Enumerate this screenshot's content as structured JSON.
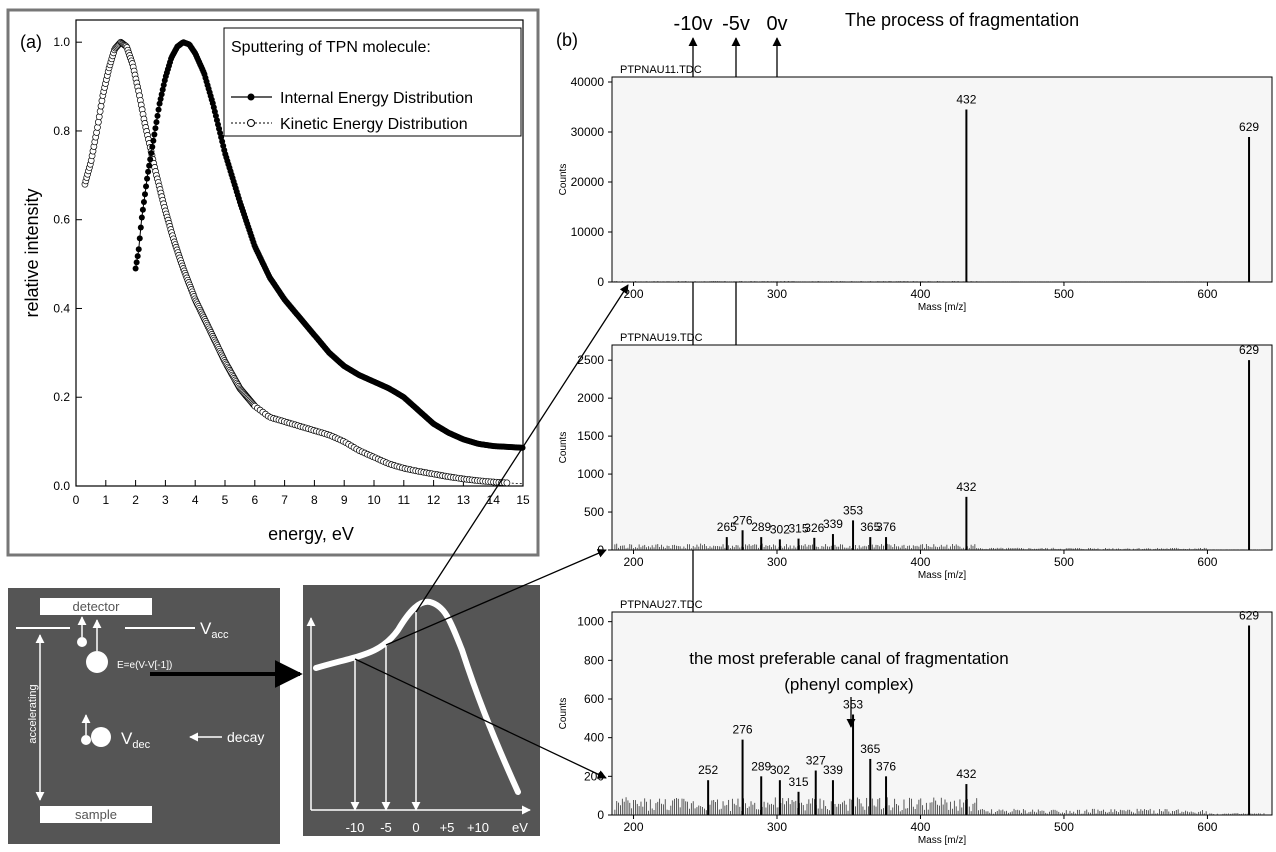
{
  "chart_data": [
    {
      "type": "line",
      "panel_label": "(a)",
      "title": "Sputtering of TPN molecule:",
      "xlabel": "energy, eV",
      "ylabel": "relative intensity",
      "xlim": [
        0,
        15
      ],
      "ylim": [
        0,
        1.05
      ],
      "xticks": [
        "0",
        "1",
        "2",
        "3",
        "4",
        "5",
        "6",
        "7",
        "8",
        "9",
        "10",
        "11",
        "12",
        "13",
        "14",
        "15"
      ],
      "yticks": [
        "0.0",
        "0.2",
        "0.4",
        "0.6",
        "0.8",
        "1.0"
      ],
      "legend_position": "top-right",
      "series": [
        {
          "name": "Internal Energy Distribution",
          "x": [
            2.0,
            2.1,
            2.2,
            2.4,
            2.6,
            2.8,
            3.0,
            3.2,
            3.4,
            3.6,
            3.8,
            4.0,
            4.3,
            4.6,
            5.0,
            5.5,
            6.0,
            6.5,
            7.0,
            7.5,
            8.0,
            8.5,
            9.0,
            9.5,
            10.0,
            10.5,
            11.0,
            11.5,
            12.0,
            12.5,
            13.0,
            13.5,
            14.0,
            14.5,
            15.0
          ],
          "y": [
            0.49,
            0.53,
            0.6,
            0.7,
            0.78,
            0.86,
            0.92,
            0.965,
            0.99,
            1.0,
            0.995,
            0.975,
            0.93,
            0.86,
            0.75,
            0.64,
            0.54,
            0.47,
            0.42,
            0.38,
            0.34,
            0.3,
            0.27,
            0.25,
            0.235,
            0.22,
            0.2,
            0.17,
            0.14,
            0.12,
            0.105,
            0.095,
            0.09,
            0.088,
            0.086
          ]
        },
        {
          "name": "Kinetic Energy Distribution",
          "x": [
            0.3,
            0.5,
            0.7,
            0.9,
            1.1,
            1.3,
            1.5,
            1.7,
            1.9,
            2.1,
            2.3,
            2.5,
            2.7,
            3.0,
            3.3,
            3.6,
            4.0,
            4.5,
            5.0,
            5.5,
            6.0,
            6.5,
            7.0,
            7.5,
            8.0,
            8.5,
            9.0,
            9.5,
            10.0,
            10.5,
            11.0,
            11.5,
            12.0,
            12.5,
            13.0,
            13.5,
            14.0,
            14.5,
            15.0
          ],
          "y": [
            0.68,
            0.73,
            0.8,
            0.88,
            0.94,
            0.985,
            1.0,
            0.99,
            0.95,
            0.89,
            0.82,
            0.76,
            0.7,
            0.62,
            0.55,
            0.49,
            0.42,
            0.35,
            0.28,
            0.22,
            0.18,
            0.155,
            0.145,
            0.135,
            0.125,
            0.115,
            0.1,
            0.08,
            0.065,
            0.05,
            0.04,
            0.033,
            0.027,
            0.021,
            0.016,
            0.012,
            0.009,
            0.007,
            0.005
          ]
        }
      ]
    },
    {
      "type": "bar",
      "panel_label": "(b)",
      "file_label": "PTPNAU11.TDC",
      "xlabel": "Mass [m/z]",
      "ylabel": "Counts",
      "xlim": [
        185,
        645
      ],
      "ylim": [
        0,
        41000
      ],
      "xticks": [
        "200",
        "300",
        "400",
        "500",
        "600"
      ],
      "yticks": [
        "0",
        "10000",
        "20000",
        "30000",
        "40000"
      ],
      "peaks": [
        {
          "mass": 432,
          "counts": 34500,
          "label": "432"
        },
        {
          "mass": 629,
          "counts": 29000,
          "label": "629"
        }
      ]
    },
    {
      "type": "bar",
      "file_label": "PTPNAU19.TDC",
      "xlabel": "Mass [m/z]",
      "ylabel": "Counts",
      "xlim": [
        185,
        645
      ],
      "ylim": [
        0,
        2700
      ],
      "xticks": [
        "200",
        "300",
        "400",
        "500",
        "600"
      ],
      "yticks": [
        "0",
        "500",
        "1000",
        "1500",
        "2000",
        "2500"
      ],
      "peaks": [
        {
          "mass": 265,
          "counts": 170,
          "label": "265"
        },
        {
          "mass": 276,
          "counts": 260,
          "label": "276"
        },
        {
          "mass": 289,
          "counts": 170,
          "label": "289"
        },
        {
          "mass": 302,
          "counts": 140,
          "label": "302"
        },
        {
          "mass": 315,
          "counts": 150,
          "label": "315"
        },
        {
          "mass": 326,
          "counts": 160,
          "label": "326"
        },
        {
          "mass": 339,
          "counts": 210,
          "label": "339"
        },
        {
          "mass": 353,
          "counts": 390,
          "label": "353"
        },
        {
          "mass": 365,
          "counts": 170,
          "label": "365"
        },
        {
          "mass": 376,
          "counts": 170,
          "label": "376"
        },
        {
          "mass": 432,
          "counts": 700,
          "label": "432"
        },
        {
          "mass": 629,
          "counts": 2500,
          "label": "629"
        }
      ]
    },
    {
      "type": "bar",
      "file_label": "PTPNAU27.TDC",
      "xlabel": "Mass [m/z]",
      "ylabel": "Counts",
      "xlim": [
        185,
        645
      ],
      "ylim": [
        0,
        1050
      ],
      "xticks": [
        "200",
        "300",
        "400",
        "500",
        "600"
      ],
      "yticks": [
        "0",
        "200",
        "400",
        "600",
        "800",
        "1000"
      ],
      "annotation": [
        "the most preferable canal of fragmentation",
        "(phenyl complex)"
      ],
      "peaks": [
        {
          "mass": 252,
          "counts": 180,
          "label": "252"
        },
        {
          "mass": 276,
          "counts": 390,
          "label": "276"
        },
        {
          "mass": 289,
          "counts": 200,
          "label": "289"
        },
        {
          "mass": 302,
          "counts": 180,
          "label": "302"
        },
        {
          "mass": 315,
          "counts": 120,
          "label": "315"
        },
        {
          "mass": 327,
          "counts": 230,
          "label": "327"
        },
        {
          "mass": 339,
          "counts": 180,
          "label": "339"
        },
        {
          "mass": 353,
          "counts": 520,
          "label": "353"
        },
        {
          "mass": 365,
          "counts": 290,
          "label": "365"
        },
        {
          "mass": 376,
          "counts": 200,
          "label": "376"
        },
        {
          "mass": 432,
          "counts": 160,
          "label": "432"
        },
        {
          "mass": 629,
          "counts": 980,
          "label": "629"
        }
      ]
    }
  ],
  "header": {
    "voltages": [
      "-10v",
      "-5v",
      "0v"
    ],
    "title": "The process of fragmentation"
  },
  "schematic": {
    "detector": "detector",
    "sample": "sample",
    "accelerating": "accelerating",
    "decay": "decay",
    "v_acc": "V",
    "v_acc_sub": "acc",
    "v_dec": "V",
    "v_dec_sub": "dec",
    "formula": "E=e(V-V[-1])"
  },
  "energy_inset": {
    "ticks": [
      "-10",
      "-5",
      "0",
      "+5",
      "+10"
    ],
    "unit": "eV"
  }
}
